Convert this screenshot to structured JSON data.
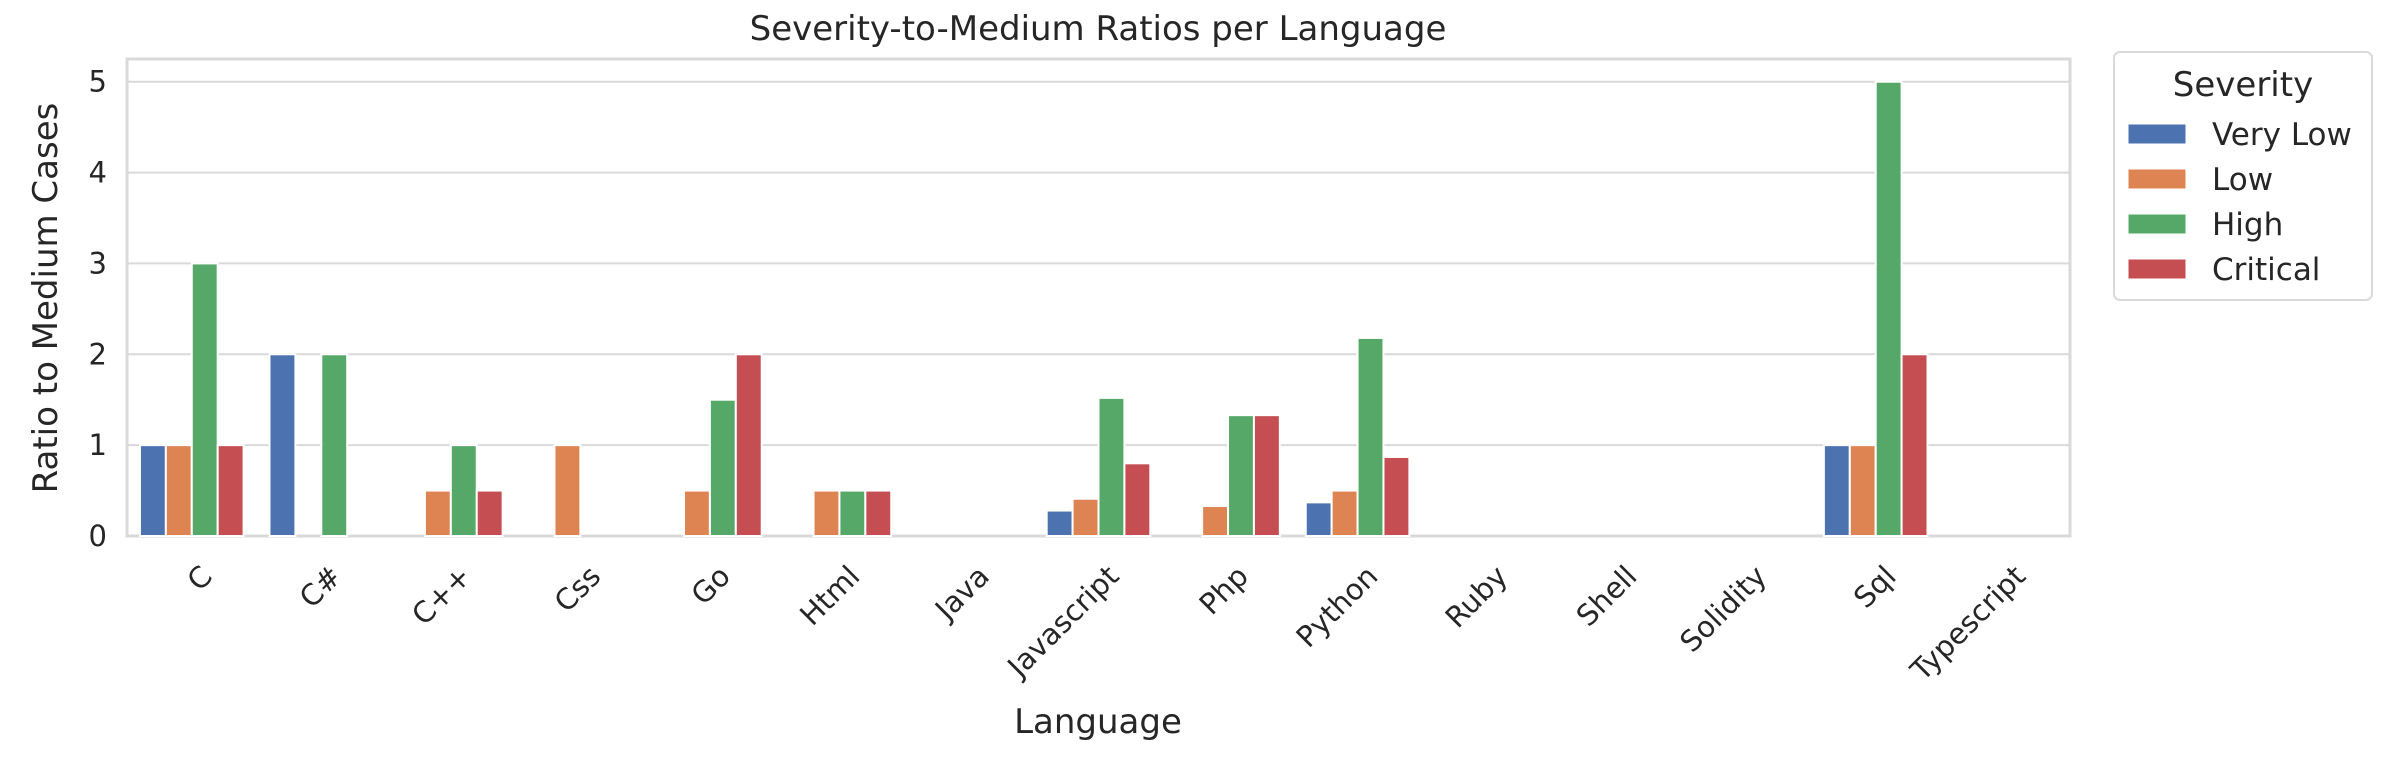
{
  "chart_data": {
    "type": "bar",
    "title": "Severity-to-Medium Ratios per Language",
    "xlabel": "Language",
    "ylabel": "Ratio to Medium Cases",
    "categories": [
      "C",
      "C#",
      "C++",
      "Css",
      "Go",
      "Html",
      "Java",
      "Javascript",
      "Php",
      "Python",
      "Ruby",
      "Shell",
      "Solidity",
      "Sql",
      "Typescript"
    ],
    "yticks": [
      0,
      1,
      2,
      3,
      4,
      5
    ],
    "ylim": [
      0,
      5.25
    ],
    "grid": true,
    "legend": {
      "title": "Severity",
      "placement": "outside-top-right"
    },
    "series": [
      {
        "name": "Very Low",
        "color": "#4c72b0",
        "values": [
          1,
          2,
          0,
          0,
          0,
          0,
          0,
          0.28,
          0,
          0.37,
          0,
          0,
          0,
          1,
          0
        ]
      },
      {
        "name": "Low",
        "color": "#dd8452",
        "values": [
          1,
          0,
          0.5,
          1,
          0.5,
          0.5,
          0,
          0.41,
          0.33,
          0.5,
          0,
          0,
          0,
          1,
          0
        ]
      },
      {
        "name": "High",
        "color": "#55a868",
        "values": [
          3,
          2,
          1,
          0,
          1.5,
          0.5,
          0,
          1.52,
          1.33,
          2.18,
          0,
          0,
          0,
          5,
          0
        ]
      },
      {
        "name": "Critical",
        "color": "#c44e52",
        "values": [
          1,
          0,
          0.5,
          0,
          2,
          0.5,
          0,
          0.8,
          1.33,
          0.87,
          0,
          0,
          0,
          2,
          0
        ]
      }
    ]
  }
}
